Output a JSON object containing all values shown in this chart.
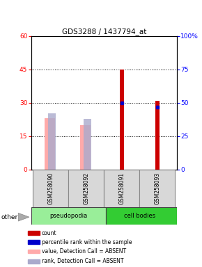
{
  "title": "GDS3288 / 1437794_at",
  "samples": [
    "GSM258090",
    "GSM258092",
    "GSM258091",
    "GSM258093"
  ],
  "ylim_left": [
    0,
    60
  ],
  "ylim_right": [
    0,
    100
  ],
  "left_ticks": [
    0,
    15,
    30,
    45,
    60
  ],
  "right_ticks": [
    0,
    25,
    50,
    75,
    100
  ],
  "right_tick_labels": [
    "0",
    "25",
    "50",
    "75",
    "100%"
  ],
  "count_values": [
    null,
    null,
    45,
    31
  ],
  "rank_values_pct": [
    null,
    null,
    50,
    47
  ],
  "absent_value_values": [
    23,
    20,
    null,
    null
  ],
  "absent_rank_values_pct": [
    42,
    38,
    null,
    null
  ],
  "color_count": "#cc0000",
  "color_rank": "#0000cc",
  "color_absent_value": "#ffaaaa",
  "color_absent_rank": "#aaaacc",
  "group_colors": {
    "pseudopodia": "#99ee99",
    "cell bodies": "#33cc33"
  },
  "legend_items": [
    {
      "color": "#cc0000",
      "label": "count"
    },
    {
      "color": "#0000cc",
      "label": "percentile rank within the sample"
    },
    {
      "color": "#ffaaaa",
      "label": "value, Detection Call = ABSENT"
    },
    {
      "color": "#aaaacc",
      "label": "rank, Detection Call = ABSENT"
    }
  ]
}
